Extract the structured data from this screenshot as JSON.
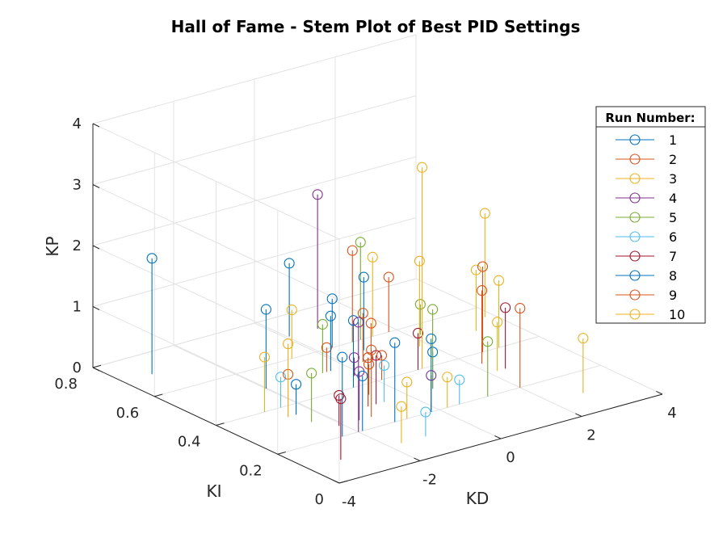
{
  "chart_data": {
    "type": "scatter",
    "subtype": "stem3",
    "title": "Hall of Fame - Stem Plot of Best PID Settings",
    "xlabel": "KD",
    "ylabel": "KI",
    "zlabel": "KP",
    "xlim": [
      -4,
      4
    ],
    "ylim": [
      0,
      0.8
    ],
    "zlim": [
      0,
      4
    ],
    "x_ticks": [
      "-4",
      "-2",
      "0",
      "2",
      "4"
    ],
    "y_ticks": [
      "0",
      "0.2",
      "0.4",
      "0.6",
      "0.8"
    ],
    "z_ticks": [
      "0",
      "1",
      "2",
      "3",
      "4"
    ],
    "grid": true,
    "legend": {
      "title": "Run Number:",
      "position": "top-right"
    },
    "series": [
      {
        "name": "1",
        "color": "#0072BD",
        "points": [
          [
            -3.3,
            0.7,
            1.9
          ],
          [
            -0.4,
            0.5,
            0.9
          ],
          [
            0.1,
            0.7,
            1.2
          ],
          [
            -1.9,
            0.2,
            0.9
          ],
          [
            -2.4,
            0.35,
            0.5
          ],
          [
            0.6,
            0.3,
            0.6
          ]
        ]
      },
      {
        "name": "2",
        "color": "#D95319",
        "points": [
          [
            -1.3,
            0.25,
            1.1
          ],
          [
            0.4,
            0.5,
            0.8
          ],
          [
            -0.6,
            0.35,
            0.5
          ],
          [
            0.9,
            0.6,
            1.5
          ],
          [
            2.0,
            0.2,
            1.3
          ],
          [
            2.6,
            0.4,
            1.4
          ],
          [
            -0.5,
            0.5,
            0.4
          ]
        ]
      },
      {
        "name": "3",
        "color": "#EDB120",
        "points": [
          [
            -2.8,
            0.4,
            0.9
          ],
          [
            1.8,
            0.5,
            1.4
          ],
          [
            2.2,
            0.3,
            0.8
          ],
          [
            -0.6,
            0.6,
            0.8
          ],
          [
            3.8,
            0.55,
            1.7
          ],
          [
            1.1,
            0.4,
            3.3
          ],
          [
            3.0,
            0.4,
            1.1
          ]
        ]
      },
      {
        "name": "4",
        "color": "#7E2F8E",
        "points": [
          [
            -2.0,
            0.2,
            1.8
          ],
          [
            0.8,
            0.7,
            2.2
          ],
          [
            -0.2,
            0.2,
            0.6
          ],
          [
            -1.6,
            0.25,
            0.8
          ],
          [
            -0.2,
            0.45,
            0.3
          ]
        ]
      },
      {
        "name": "5",
        "color": "#77AC30",
        "points": [
          [
            -2.4,
            0.3,
            0.8
          ],
          [
            -0.6,
            0.5,
            0.8
          ],
          [
            0.6,
            0.3,
            1.3
          ],
          [
            1.1,
            0.6,
            1.6
          ],
          [
            2.2,
            0.55,
            0.5
          ],
          [
            1.2,
            0.2,
            0.9
          ]
        ]
      },
      {
        "name": "6",
        "color": "#4DBEEE",
        "points": [
          [
            -2.4,
            0.4,
            0.5
          ],
          [
            -0.6,
            0.3,
            0.6
          ],
          [
            0.5,
            0.2,
            0.4
          ],
          [
            -1.1,
            0.1,
            0.4
          ]
        ]
      },
      {
        "name": "7",
        "color": "#A2142F",
        "points": [
          [
            -3.2,
            0.1,
            1.0
          ],
          [
            -2.1,
            0.25,
            0.5
          ],
          [
            -0.8,
            0.3,
            0.8
          ],
          [
            1.0,
            0.4,
            0.6
          ],
          [
            2.4,
            0.3,
            1.0
          ],
          [
            -1.0,
            0.3,
            0.8
          ]
        ]
      },
      {
        "name": "8",
        "color": "#0072BD",
        "points": [
          [
            -2.4,
            0.2,
            1.3
          ],
          [
            -2.0,
            0.5,
            1.3
          ],
          [
            -1.1,
            0.2,
            1.3
          ],
          [
            -0.2,
            0.2,
            1.2
          ],
          [
            0.8,
            0.55,
            1.2
          ],
          [
            0.4,
            0.6,
            0.8
          ],
          [
            -0.6,
            0.4,
            1.1
          ]
        ]
      },
      {
        "name": "9",
        "color": "#D95319",
        "points": [
          [
            -2.6,
            0.35,
            0.7
          ],
          [
            -1.0,
            0.3,
            0.8
          ],
          [
            0.6,
            0.5,
            0.6
          ],
          [
            1.8,
            0.6,
            0.9
          ],
          [
            2.2,
            0.35,
            1.2
          ],
          [
            0.1,
            0.4,
            0.4
          ]
        ]
      },
      {
        "name": "10",
        "color": "#EDB120",
        "points": [
          [
            -2.6,
            0.35,
            1.2
          ],
          [
            -0.8,
            0.2,
            0.6
          ],
          [
            0.2,
            0.2,
            0.5
          ],
          [
            1.4,
            0.6,
            1.3
          ],
          [
            3.2,
            0.5,
            1.0
          ],
          [
            -1.7,
            0.1,
            0.6
          ],
          [
            2.8,
            0.1,
            0.9
          ]
        ]
      }
    ]
  }
}
